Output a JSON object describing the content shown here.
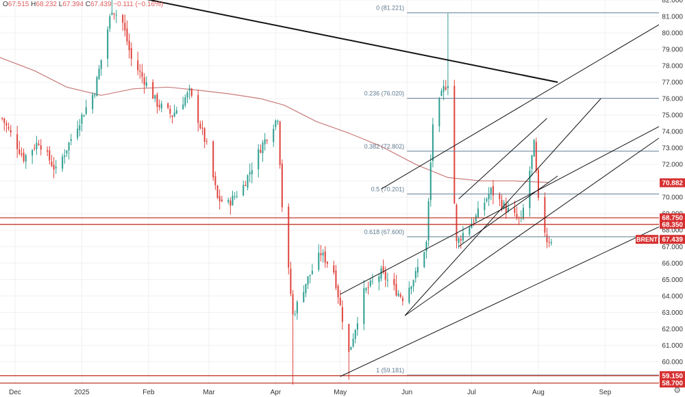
{
  "header": {
    "ohlc": [
      {
        "key": "O",
        "value": "67.515"
      },
      {
        "key": "H",
        "value": "68.232"
      },
      {
        "key": "L",
        "value": "67.394"
      },
      {
        "key": "C",
        "value": "67.439"
      },
      {
        "key": "",
        "value": "−0.111 (−0.16%)"
      }
    ]
  },
  "colors": {
    "up": "#2a9d8f",
    "down": "#e0413a",
    "ma": "#c97a7a",
    "fib": "#5f7a8f",
    "horizontal": "#c0392b",
    "trend": "#111111",
    "badge_red": "#d63031",
    "grid": "#f0f0f0"
  },
  "chart_data": {
    "type": "candlestick",
    "symbol_badge": "BRENT",
    "x_ticks": [
      {
        "label": "Dec",
        "date": "2024-12-01"
      },
      {
        "label": "2025",
        "date": "2025-01-01"
      },
      {
        "label": "Feb",
        "date": "2025-02-01"
      },
      {
        "label": "Mar",
        "date": "2025-03-01"
      },
      {
        "label": "Apr",
        "date": "2025-04-01"
      },
      {
        "label": "May",
        "date": "2025-05-01"
      },
      {
        "label": "Jun",
        "date": "2025-06-01"
      },
      {
        "label": "Jul",
        "date": "2025-07-01"
      },
      {
        "label": "Aug",
        "date": "2025-08-01"
      },
      {
        "label": "Sep",
        "date": "2025-09-01"
      }
    ],
    "x_range": [
      "2024-11-24",
      "2025-09-26"
    ],
    "y_range": [
      58.6,
      82.0
    ],
    "y_ticks": [
      "82.000",
      "81.000",
      "80.000",
      "79.000",
      "78.000",
      "77.000",
      "76.000",
      "75.000",
      "74.000",
      "73.000",
      "72.000",
      "71.000",
      "70.000",
      "69.000",
      "68.000",
      "67.000",
      "66.000",
      "65.000",
      "64.000",
      "63.000",
      "62.000",
      "61.000",
      "60.000"
    ],
    "price_tags": [
      {
        "label": "70.882",
        "value": 70.882
      },
      {
        "label": "68.750",
        "value": 68.75
      },
      {
        "label": "68.350",
        "value": 68.35
      },
      {
        "label": "67.439",
        "value": 67.439
      },
      {
        "label": "59.150",
        "value": 59.15
      },
      {
        "label": "58.700",
        "value": 58.7
      }
    ],
    "fib_levels": [
      {
        "label": "0 (81.221)",
        "value": 81.221
      },
      {
        "label": "0.236 (76.020)",
        "value": 76.02
      },
      {
        "label": "0.382 (72.802)",
        "value": 72.802
      },
      {
        "label": "0.5 (70.201)",
        "value": 70.201
      },
      {
        "label": "0.618 (67.600)",
        "value": 67.6
      },
      {
        "label": "1 (59.181)",
        "value": 59.181
      }
    ],
    "fib_start_date": "2025-06-01",
    "horizontal_lines": [
      68.75,
      68.35,
      59.15,
      58.7
    ],
    "moving_average": [
      {
        "d": "2024-11-24",
        "v": 78.5
      },
      {
        "d": "2024-12-10",
        "v": 77.7
      },
      {
        "d": "2024-12-25",
        "v": 76.7
      },
      {
        "d": "2025-01-10",
        "v": 76.2
      },
      {
        "d": "2025-01-25",
        "v": 76.6
      },
      {
        "d": "2025-02-10",
        "v": 76.7
      },
      {
        "d": "2025-02-25",
        "v": 76.5
      },
      {
        "d": "2025-03-10",
        "v": 76.3
      },
      {
        "d": "2025-03-25",
        "v": 76.0
      },
      {
        "d": "2025-04-05",
        "v": 75.6
      },
      {
        "d": "2025-04-20",
        "v": 74.6
      },
      {
        "d": "2025-05-05",
        "v": 73.9
      },
      {
        "d": "2025-05-20",
        "v": 73.1
      },
      {
        "d": "2025-06-05",
        "v": 72.0
      },
      {
        "d": "2025-06-20",
        "v": 71.2
      },
      {
        "d": "2025-07-05",
        "v": 71.0
      },
      {
        "d": "2025-07-20",
        "v": 71.0
      },
      {
        "d": "2025-08-06",
        "v": 70.9
      }
    ],
    "trend_lines": [
      {
        "d1": "2025-01-10",
        "p1": 82.6,
        "d2": "2025-08-10",
        "p2": 77.0,
        "w": 2
      },
      {
        "d1": "2025-05-20",
        "p1": 70.5,
        "d2": "2025-09-26",
        "p2": 80.5,
        "w": 1
      },
      {
        "d1": "2025-05-01",
        "p1": 64.1,
        "d2": "2025-09-26",
        "p2": 74.3,
        "w": 1
      },
      {
        "d1": "2025-05-01",
        "p1": 59.1,
        "d2": "2025-09-26",
        "p2": 68.2,
        "w": 1
      },
      {
        "d1": "2025-05-31",
        "p1": 62.8,
        "d2": "2025-09-26",
        "p2": 73.6,
        "w": 1
      },
      {
        "d1": "2025-05-31",
        "p1": 62.8,
        "d2": "2025-08-30",
        "p2": 76.0,
        "w": 1
      },
      {
        "d1": "2025-06-25",
        "p1": 69.9,
        "d2": "2025-08-05",
        "p2": 74.8,
        "w": 1
      },
      {
        "d1": "2025-06-25",
        "p1": 67.0,
        "d2": "2025-08-10",
        "p2": 71.3,
        "w": 1
      }
    ],
    "anchors": [
      [
        "2024-11-25",
        74.8
      ],
      [
        "2024-12-05",
        72.4
      ],
      [
        "2024-12-12",
        73.4
      ],
      [
        "2024-12-20",
        71.6
      ],
      [
        "2024-12-30",
        74.4
      ],
      [
        "2025-01-07",
        76.5
      ],
      [
        "2025-01-15",
        81.5
      ],
      [
        "2025-01-20",
        80.6
      ],
      [
        "2025-01-24",
        78.4
      ],
      [
        "2025-01-31",
        76.9
      ],
      [
        "2025-02-05",
        75.7
      ],
      [
        "2025-02-12",
        75.0
      ],
      [
        "2025-02-20",
        76.4
      ],
      [
        "2025-02-28",
        73.1
      ],
      [
        "2025-03-05",
        69.9
      ],
      [
        "2025-03-10",
        69.6
      ],
      [
        "2025-03-17",
        70.7
      ],
      [
        "2025-03-25",
        73.0
      ],
      [
        "2025-04-02",
        74.9
      ],
      [
        "2025-04-04",
        69.5
      ],
      [
        "2025-04-09",
        62.8
      ],
      [
        "2025-04-15",
        64.8
      ],
      [
        "2025-04-22",
        66.6
      ],
      [
        "2025-04-28",
        65.5
      ],
      [
        "2025-05-05",
        60.5
      ],
      [
        "2025-05-12",
        64.2
      ],
      [
        "2025-05-20",
        65.4
      ],
      [
        "2025-05-27",
        64.3
      ],
      [
        "2025-05-30",
        63.9
      ],
      [
        "2025-06-05",
        65.3
      ],
      [
        "2025-06-10",
        67.2
      ],
      [
        "2025-06-13",
        74.5
      ],
      [
        "2025-06-18",
        76.6
      ],
      [
        "2025-06-20",
        77.0
      ],
      [
        "2025-06-24",
        67.2
      ],
      [
        "2025-06-27",
        67.8
      ],
      [
        "2025-07-03",
        68.8
      ],
      [
        "2025-07-10",
        70.4
      ],
      [
        "2025-07-17",
        69.3
      ],
      [
        "2025-07-24",
        68.5
      ],
      [
        "2025-07-30",
        73.2
      ],
      [
        "2025-08-01",
        69.7
      ],
      [
        "2025-08-05",
        67.4
      ],
      [
        "2025-08-07",
        67.44
      ]
    ],
    "extremes": [
      {
        "d": "2025-01-15",
        "high": 82.6
      },
      {
        "d": "2025-06-20",
        "high": 81.2
      },
      {
        "d": "2025-04-09",
        "low": 58.6
      },
      {
        "d": "2025-05-05",
        "low": 58.9
      },
      {
        "d": "2025-08-05",
        "low": 66.9
      }
    ]
  }
}
